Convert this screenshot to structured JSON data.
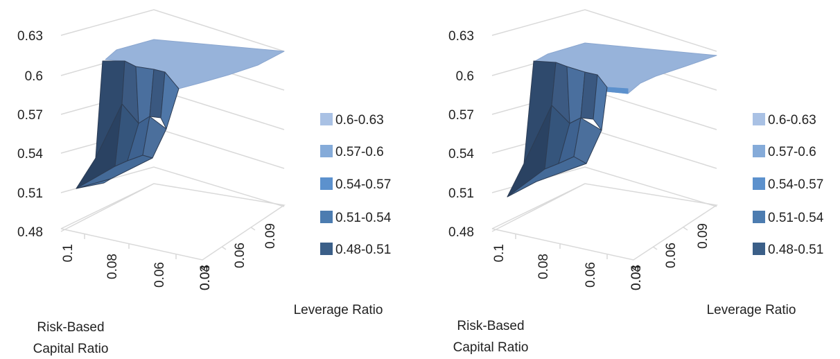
{
  "charts": [
    {
      "chart_data": {
        "type": "surface",
        "z_ticks": [
          "0.63",
          "0.6",
          "0.57",
          "0.54",
          "0.51",
          "0.48"
        ],
        "rbc_ticks": [
          "0.1",
          "0.08",
          "0.06",
          "0.04"
        ],
        "lev_ticks": [
          "0.03",
          "0.06",
          "0.09"
        ],
        "x_title_line1": "Risk-Based",
        "x_title_line2": "Capital Ratio",
        "y_title": "Leverage Ratio",
        "legend": [
          "0.6-0.63",
          "0.57-0.6",
          "0.54-0.57",
          "0.51-0.54",
          "0.48-0.51"
        ],
        "legend_colors": [
          "#a9c1e4",
          "#85abd9",
          "#5c91cd",
          "#4c7cb0",
          "#3b5f88"
        ]
      }
    },
    {
      "chart_data": {
        "type": "surface",
        "z_ticks": [
          "0.63",
          "0.6",
          "0.57",
          "0.54",
          "0.51",
          "0.48"
        ],
        "rbc_ticks": [
          "0.1",
          "0.08",
          "0.06",
          "0.04"
        ],
        "lev_ticks": [
          "0.03",
          "0.06",
          "0.09"
        ],
        "x_title_line1": "Risk-Based",
        "x_title_line2": "Capital Ratio",
        "y_title": "Leverage Ratio",
        "legend": [
          "0.6-0.63",
          "0.57-0.6",
          "0.54-0.57",
          "0.51-0.54",
          "0.48-0.51"
        ],
        "legend_colors": [
          "#a9c1e4",
          "#85abd9",
          "#5c91cd",
          "#4c7cb0",
          "#3b5f88"
        ]
      }
    }
  ]
}
